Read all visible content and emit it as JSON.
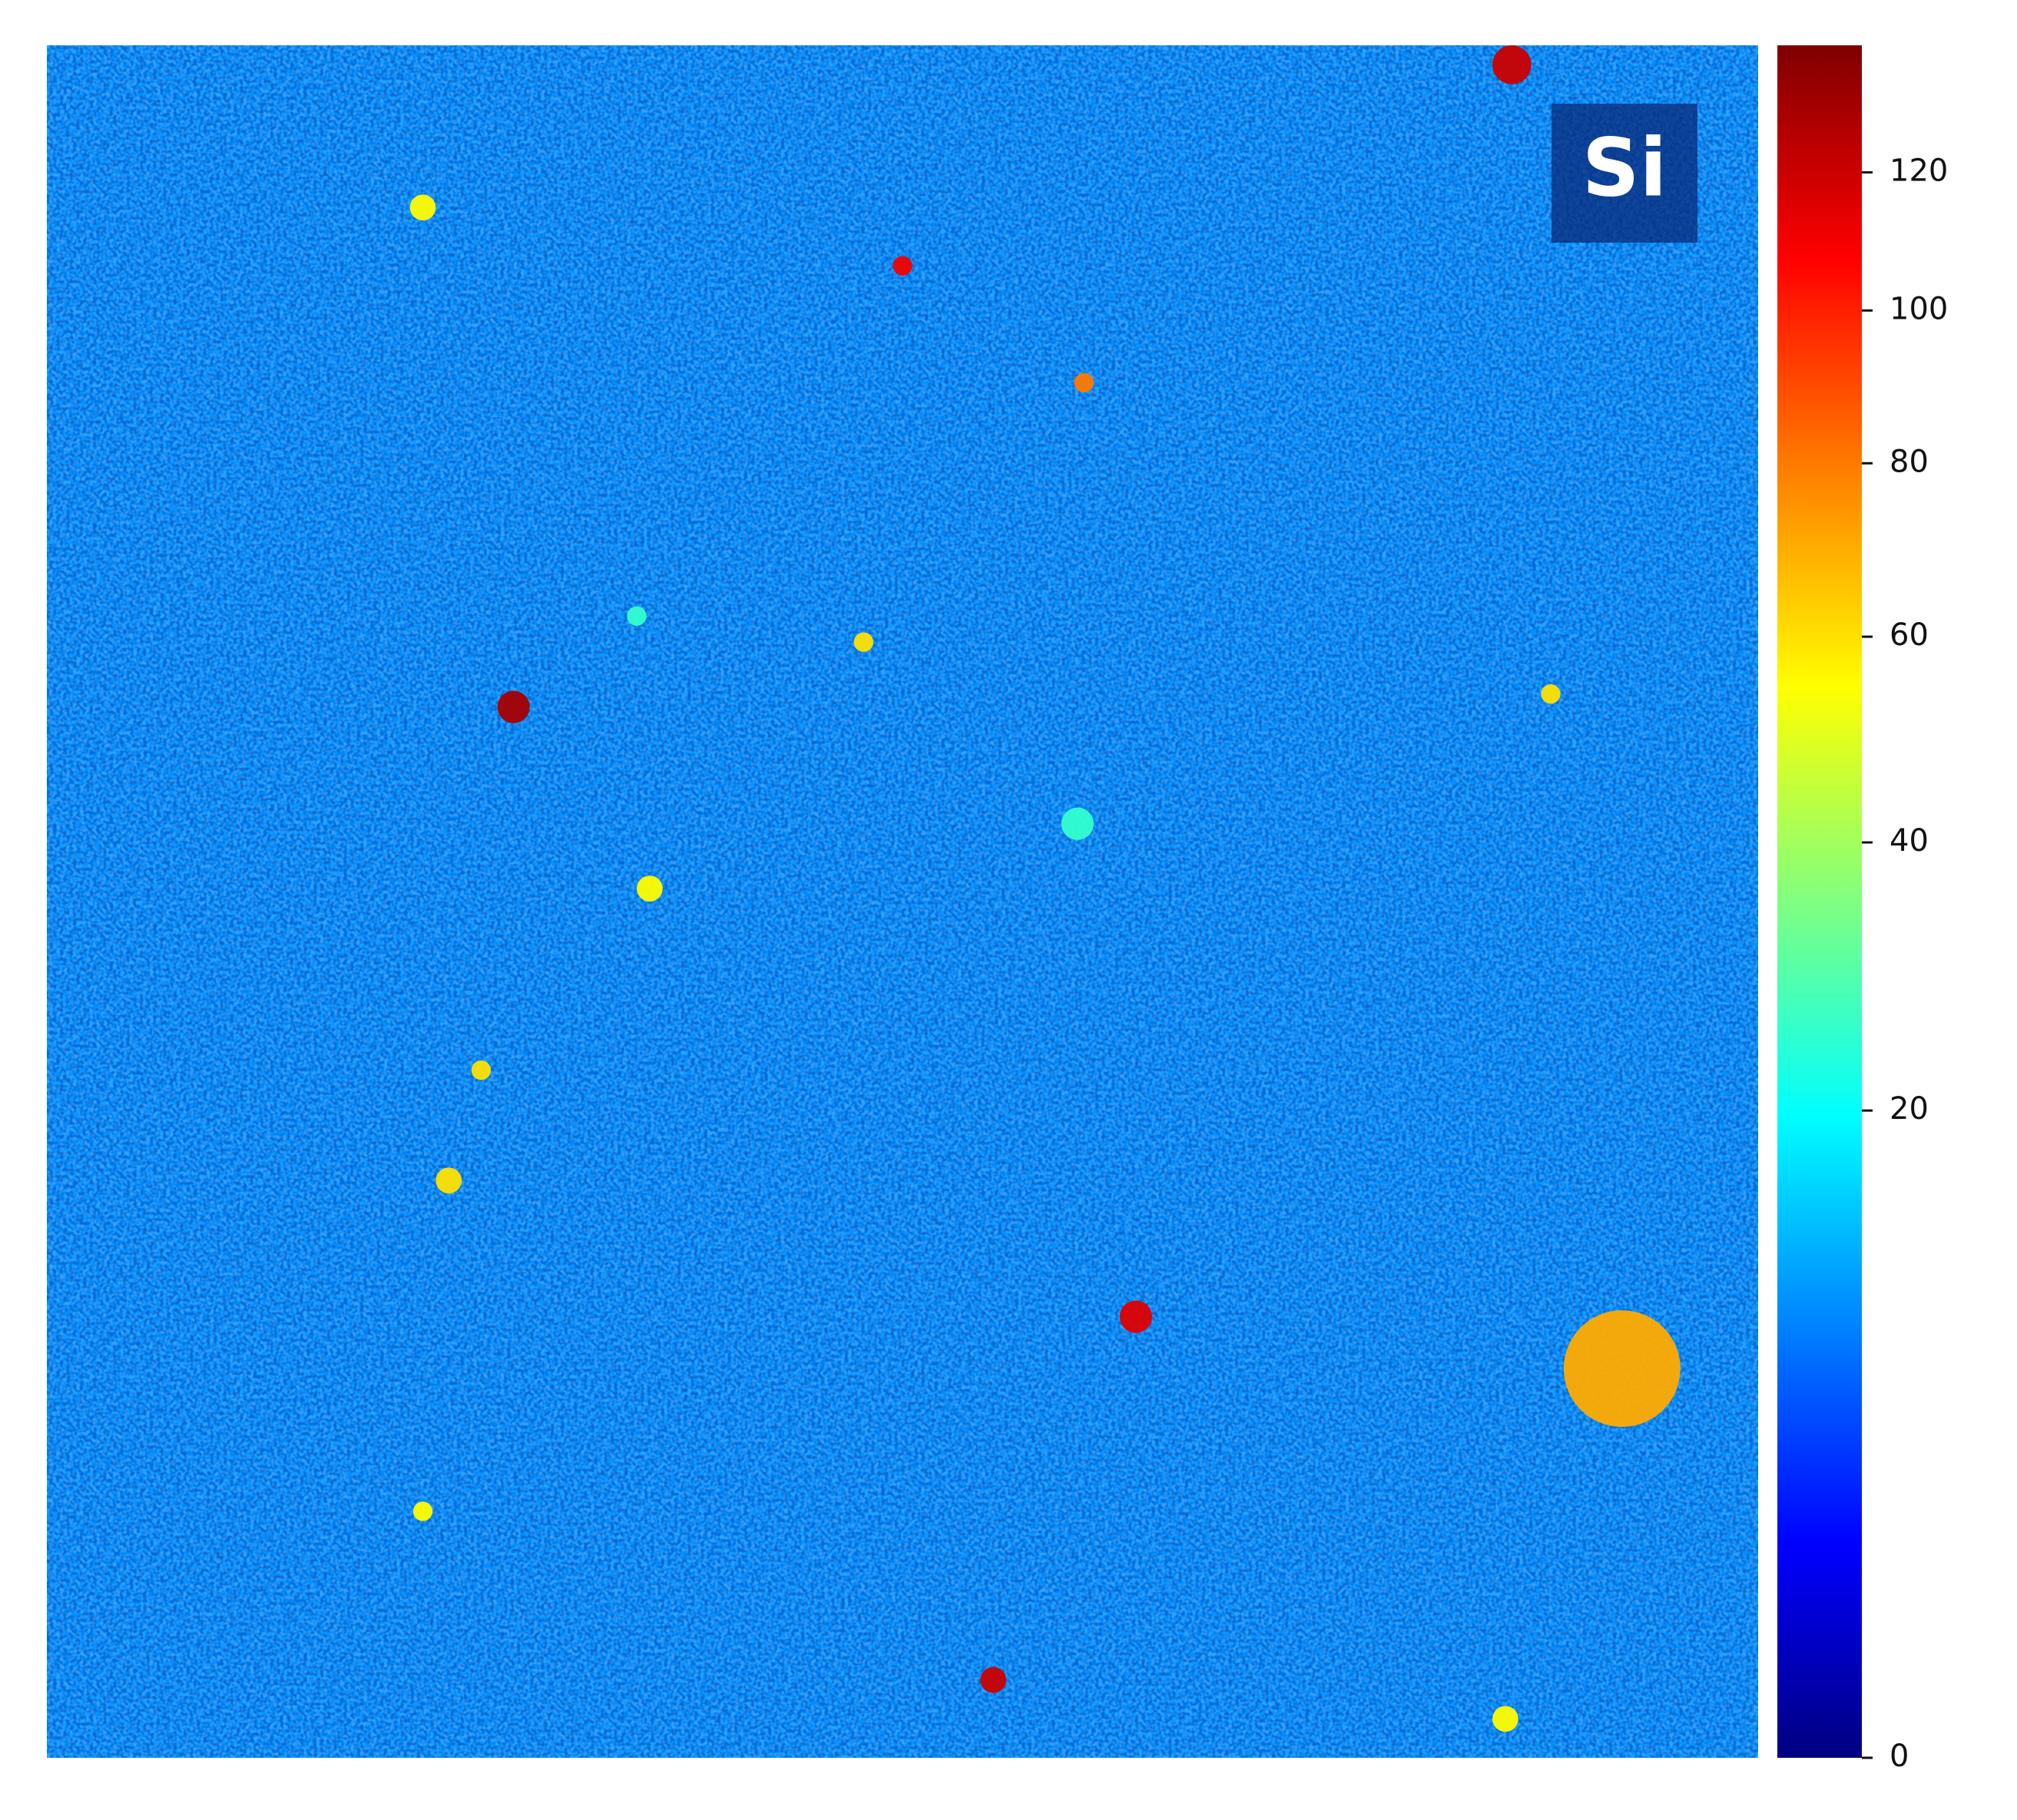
{
  "chart_data": {
    "type": "heatmap",
    "label": "Si",
    "colormap": "jet",
    "norm": "power",
    "gamma": 0.5,
    "clim": [
      0,
      140
    ],
    "cticks": [
      0,
      20,
      40,
      60,
      80,
      100,
      120
    ],
    "background": 10,
    "xlim": [
      0,
      264
    ],
    "ylim": [
      264,
      0
    ],
    "spots": [
      {
        "x": 226,
        "y": 3,
        "size": 3,
        "value": 120
      },
      {
        "x": 58,
        "y": 25,
        "size": 2,
        "value": 55
      },
      {
        "x": 132,
        "y": 34,
        "size": 1.5,
        "value": 110
      },
      {
        "x": 72,
        "y": 102,
        "size": 2.5,
        "value": 130
      },
      {
        "x": 160,
        "y": 52,
        "size": 1.5,
        "value": 80
      },
      {
        "x": 126,
        "y": 92,
        "size": 1.5,
        "value": 60
      },
      {
        "x": 93,
        "y": 130,
        "size": 2,
        "value": 55
      },
      {
        "x": 67,
        "y": 158,
        "size": 1.5,
        "value": 60
      },
      {
        "x": 62,
        "y": 175,
        "size": 2,
        "value": 60
      },
      {
        "x": 168,
        "y": 196,
        "size": 2.5,
        "value": 115
      },
      {
        "x": 243,
        "y": 204,
        "size": 9,
        "value": 70
      },
      {
        "x": 146,
        "y": 252,
        "size": 2,
        "value": 120
      },
      {
        "x": 225,
        "y": 258,
        "size": 2,
        "value": 55
      },
      {
        "x": 232,
        "y": 100,
        "size": 1.5,
        "value": 60
      },
      {
        "x": 58,
        "y": 226,
        "size": 1.5,
        "value": 55
      },
      {
        "x": 91,
        "y": 88,
        "size": 1.5,
        "value": 25
      },
      {
        "x": 159,
        "y": 120,
        "size": 2.5,
        "value": 25
      }
    ]
  }
}
